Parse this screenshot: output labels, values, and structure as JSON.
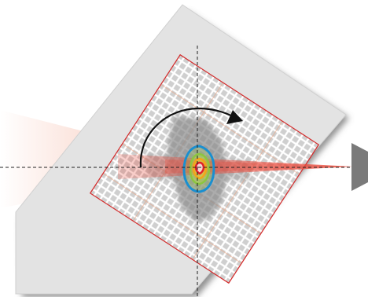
{
  "diagram": {
    "colors": {
      "background": "#ffffff",
      "panel": "#e3e3e3",
      "panel_shadow": "#777777",
      "grid_border": "#d42a2a",
      "grid_line": "#ffffff",
      "grid_square": "#d2d2d2",
      "beam_right": "#e94b3c",
      "beam_left": "#f08a6a",
      "footprint": "#8a8a8a",
      "contour_outer": "#1a8fd0",
      "contour_2": "#8cc63f",
      "contour_3": "#f2a51a",
      "contour_inner": "#e0202a",
      "arrow": "#111111",
      "axis": "#222222",
      "detector": "#7a7a7a"
    },
    "rotation_arrow_icon": "curved-clockwise-arrow-icon",
    "detector_icon": "triangle-detector-icon"
  }
}
